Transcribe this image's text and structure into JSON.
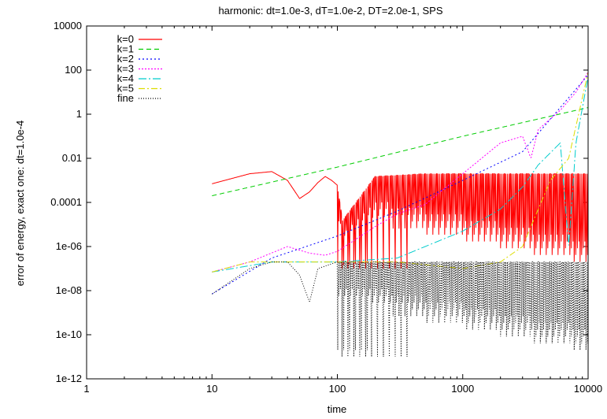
{
  "chart_data": {
    "type": "line",
    "title": "harmonic: dt=1.0e-3, dT=1.0e-2, DT=2.0e-1, SPS",
    "xlabel": "time",
    "ylabel": "error of energy, exact one: dt=1.0e-4",
    "xscale": "log",
    "yscale": "log",
    "xlim": [
      1,
      10000
    ],
    "ylim": [
      1e-12,
      10000
    ],
    "xticks": [
      "1",
      "10",
      "100",
      "1000",
      "10000"
    ],
    "yticks": [
      "1e-12",
      "1e-10",
      "1e-08",
      "1e-06",
      "0.0001",
      "0.01",
      "1",
      "100",
      "10000"
    ],
    "legend_position": "top-left",
    "series": [
      {
        "name": "k=0",
        "color": "#ff0000",
        "dash": "",
        "x": [
          10,
          20,
          30,
          40,
          50,
          60,
          70,
          80,
          90,
          100,
          110,
          200,
          500,
          1000,
          2000,
          5000,
          10000
        ],
        "y": [
          0.0007,
          0.002,
          0.0025,
          0.001,
          0.00015,
          0.0003,
          0.0008,
          0.0015,
          0.001,
          0.0006,
          1.5e-05,
          0.0015,
          0.002,
          0.002,
          0.002,
          0.002,
          0.002
        ],
        "oscillate_from": 100,
        "band_low": 1e-07
      },
      {
        "name": "k=1",
        "color": "#00cc00",
        "dash": "6,4",
        "x": [
          10,
          100,
          1000,
          10000
        ],
        "y": [
          0.0002,
          0.004,
          0.1,
          2
        ]
      },
      {
        "name": "k=2",
        "color": "#0000ff",
        "dash": "2,3",
        "x": [
          10,
          30,
          100,
          300,
          1000,
          3000,
          10000
        ],
        "y": [
          7e-09,
          3e-07,
          3e-06,
          4e-05,
          0.001,
          0.02,
          60
        ]
      },
      {
        "name": "k=3",
        "color": "#ff00ff",
        "dash": "2,2",
        "x": [
          10,
          20,
          40,
          60,
          80,
          100,
          200,
          300,
          500,
          1000,
          2000,
          3000,
          3500,
          4000,
          6000,
          8000,
          10000
        ],
        "y": [
          7e-08,
          2e-07,
          1e-06,
          5e-07,
          4e-07,
          6e-07,
          8e-06,
          3e-05,
          8e-05,
          0.002,
          0.05,
          0.1,
          0.01,
          0.2,
          1.5,
          10,
          80
        ]
      },
      {
        "name": "k=4",
        "color": "#00cccc",
        "dash": "10,3,2,3",
        "x": [
          10,
          30,
          100,
          300,
          1000,
          2000,
          3000,
          4000,
          6000,
          7000,
          8000,
          10000
        ],
        "y": [
          7e-08,
          2e-07,
          2e-07,
          3e-07,
          5e-06,
          5e-05,
          0.0005,
          0.005,
          0.05,
          1e-06,
          0.05,
          50
        ]
      },
      {
        "name": "k=5",
        "color": "#dddd00",
        "dash": "8,3,2,3",
        "x": [
          10,
          20,
          30,
          100,
          300,
          1000,
          2000,
          3000,
          5000,
          7000,
          10000
        ],
        "y": [
          7e-08,
          2e-07,
          2e-07,
          2e-07,
          2e-07,
          1e-07,
          2e-07,
          1e-06,
          0.001,
          0.01,
          80
        ]
      },
      {
        "name": "fine",
        "color": "#000000",
        "dash": "1,2",
        "x": [
          10,
          20,
          30,
          40,
          50,
          60,
          70,
          100,
          200,
          500,
          1000,
          2000,
          5000,
          10000
        ],
        "y": [
          7e-09,
          1e-07,
          2e-07,
          2e-07,
          5e-08,
          3e-09,
          1e-07,
          2e-07,
          2e-07,
          2e-07,
          2e-07,
          2e-07,
          2e-07,
          2e-07
        ],
        "oscillate_from": 100,
        "band_low": 1e-11
      }
    ]
  }
}
